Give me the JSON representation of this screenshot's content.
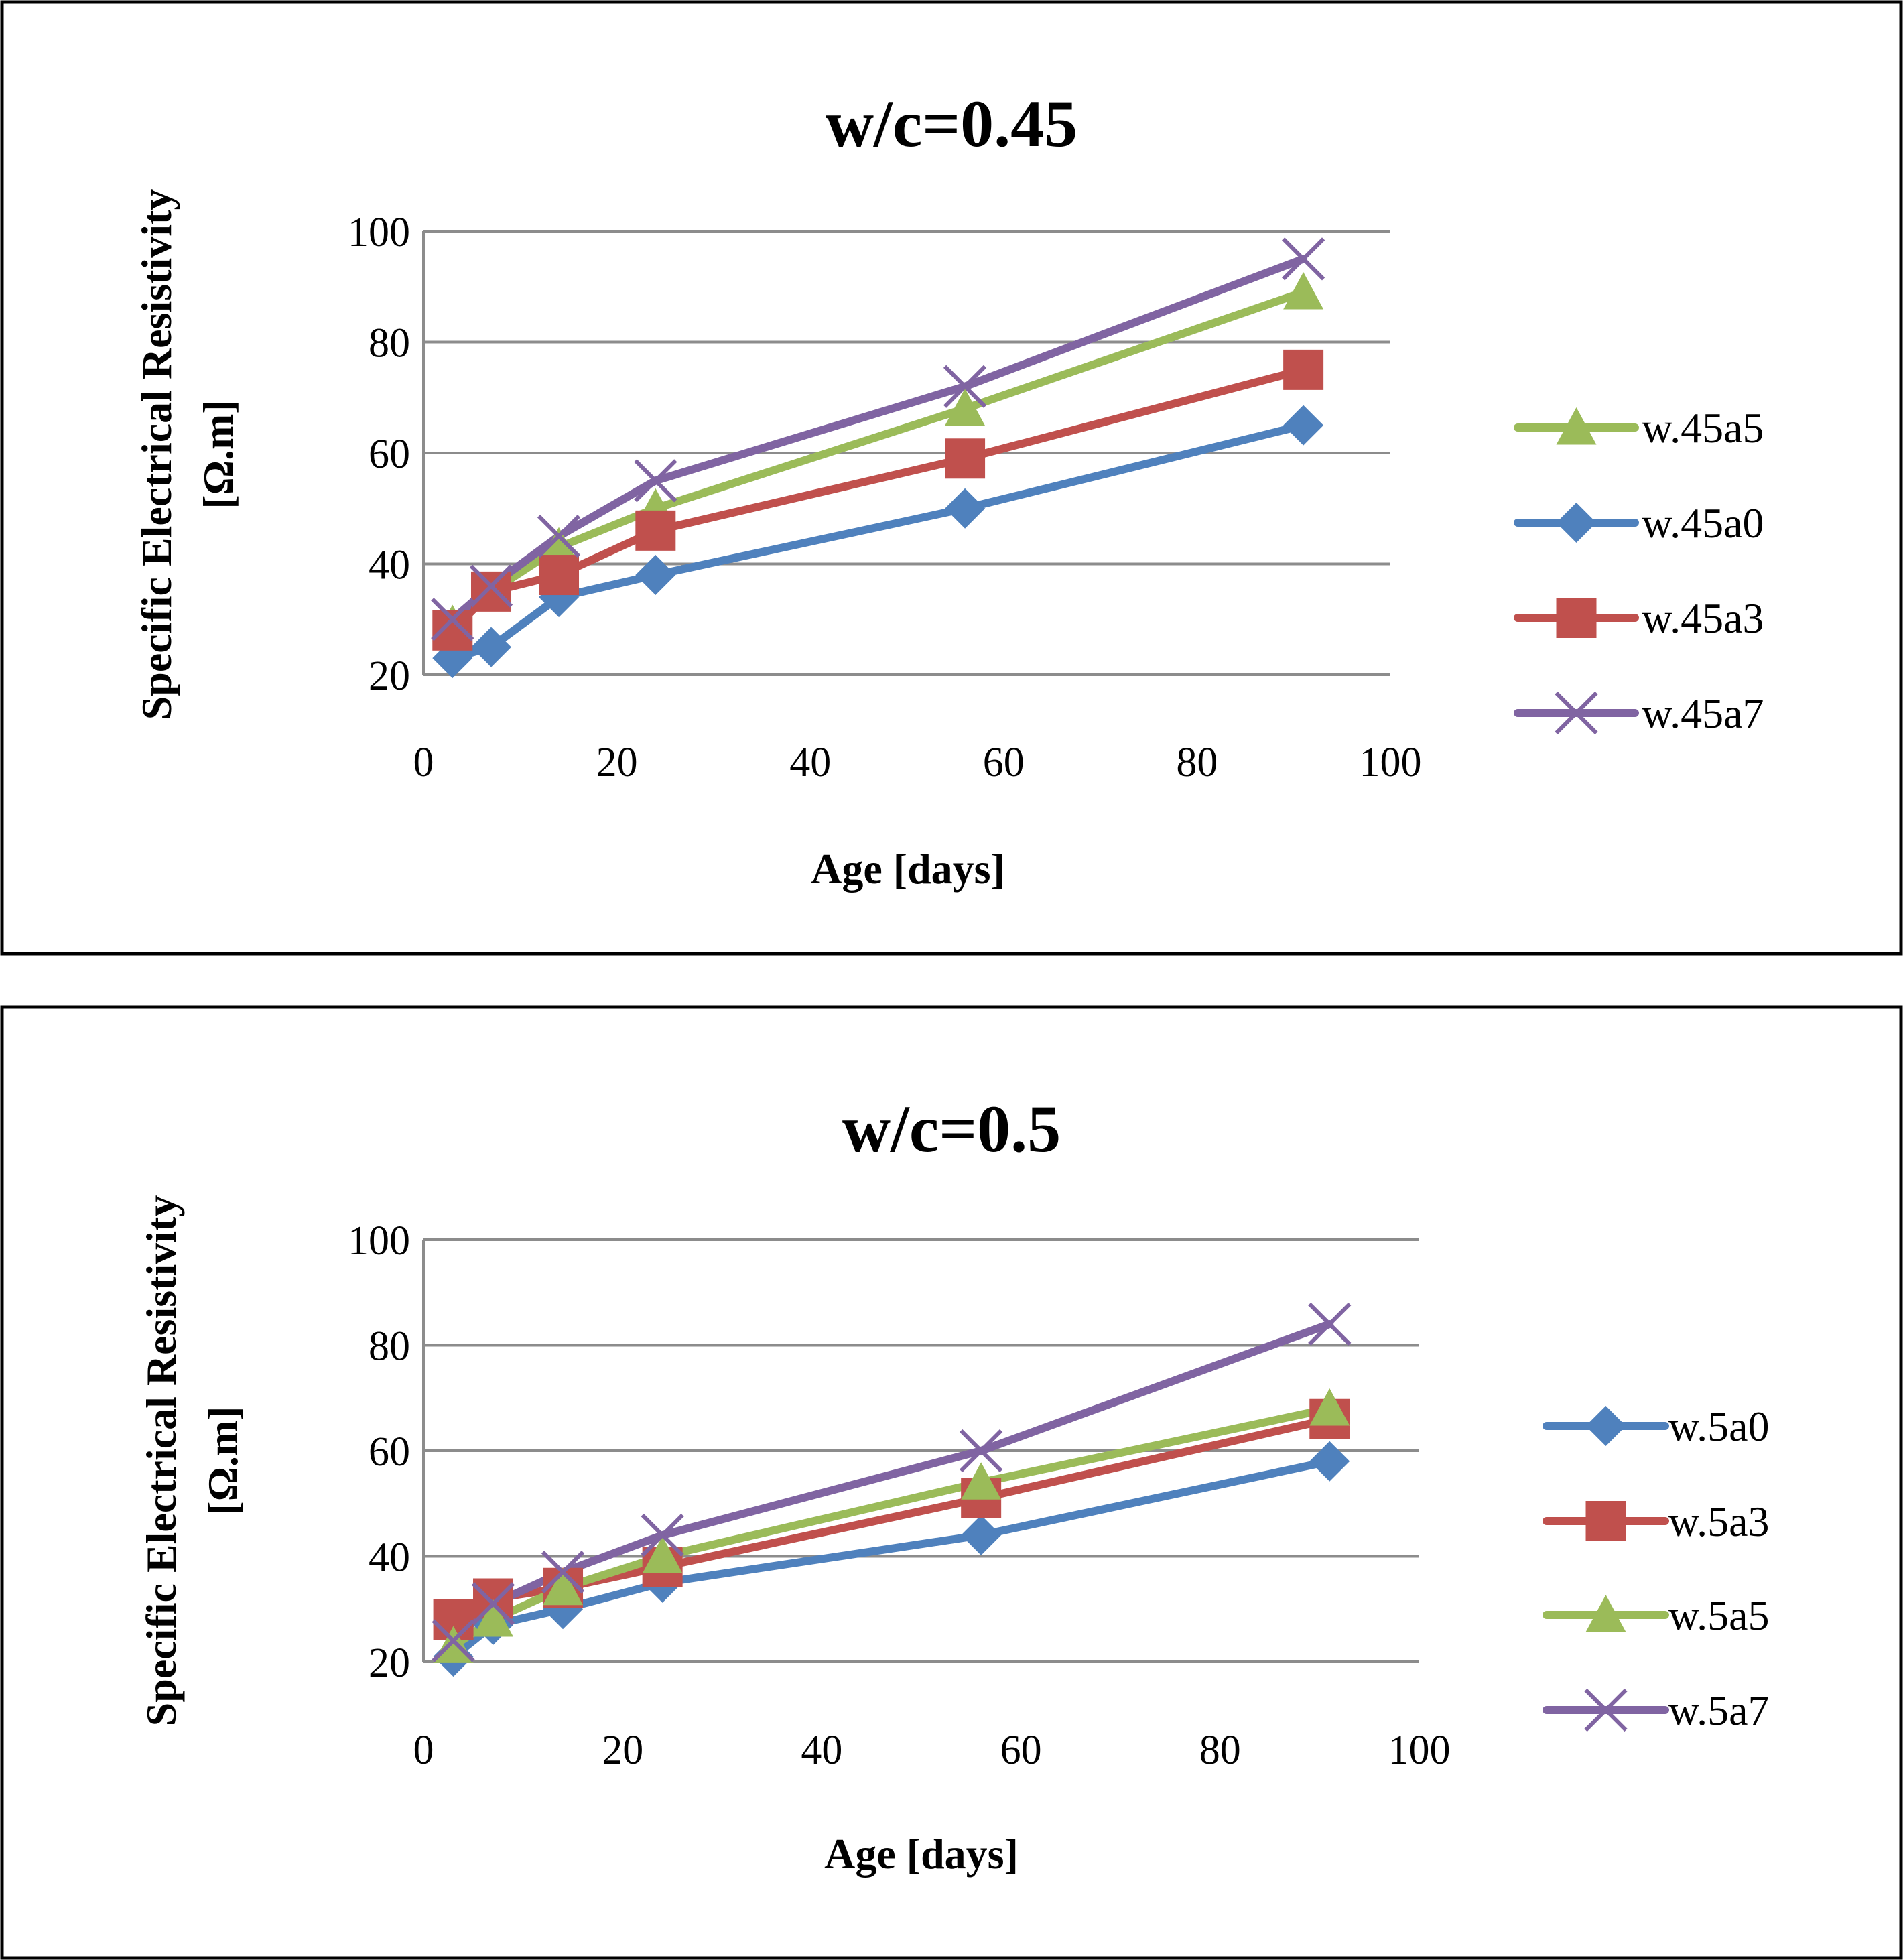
{
  "chart_data": [
    {
      "type": "line",
      "title": "w/c=0.45",
      "xlabel": "Age [days]",
      "ylabel": [
        "Specific Electrical Resistivity",
        "[Ω.m]"
      ],
      "xlim": [
        0,
        100
      ],
      "ylim": [
        20,
        100
      ],
      "xticks": [
        0,
        20,
        40,
        60,
        80,
        100
      ],
      "yticks": [
        20,
        40,
        60,
        80,
        100
      ],
      "grid": "horizontal",
      "legend_position": "right",
      "series": [
        {
          "name": "w.45a5",
          "color": "#9BBB59",
          "marker": "triangle",
          "x": [
            3,
            7,
            14,
            24,
            56,
            91
          ],
          "values": [
            29,
            35,
            43,
            50,
            68,
            89
          ]
        },
        {
          "name": "w.45a0",
          "color": "#4F81BD",
          "marker": "diamond",
          "x": [
            3,
            7,
            14,
            24,
            56,
            91
          ],
          "values": [
            23,
            25,
            34,
            38,
            50,
            65
          ]
        },
        {
          "name": "w.45a3",
          "color": "#C0504D",
          "marker": "square",
          "x": [
            3,
            7,
            14,
            24,
            56,
            91
          ],
          "values": [
            28,
            35,
            38,
            46,
            59,
            75
          ]
        },
        {
          "name": "w.45a7",
          "color": "#8064A2",
          "marker": "x",
          "x": [
            3,
            7,
            14,
            24,
            56,
            91
          ],
          "values": [
            30,
            36,
            45,
            55,
            72,
            95
          ]
        }
      ]
    },
    {
      "type": "line",
      "title": "w/c=0.5",
      "xlabel": "Age [days]",
      "ylabel": [
        "Specific Electrical Resistivity",
        "[Ω.m]"
      ],
      "xlim": [
        0,
        100
      ],
      "ylim": [
        20,
        100
      ],
      "xticks": [
        0,
        20,
        40,
        60,
        80,
        100
      ],
      "yticks": [
        20,
        40,
        60,
        80,
        100
      ],
      "grid": "horizontal",
      "legend_position": "right",
      "series": [
        {
          "name": "w.5a0",
          "color": "#4F81BD",
          "marker": "diamond",
          "x": [
            3,
            7,
            14,
            24,
            56,
            91
          ],
          "values": [
            21,
            27,
            30,
            35,
            44,
            58
          ]
        },
        {
          "name": "w.5a3",
          "color": "#C0504D",
          "marker": "square",
          "x": [
            3,
            7,
            14,
            24,
            56,
            91
          ],
          "values": [
            28,
            32,
            34,
            38,
            51,
            66
          ]
        },
        {
          "name": "w.5a5",
          "color": "#9BBB59",
          "marker": "triangle",
          "x": [
            3,
            7,
            14,
            24,
            56,
            91
          ],
          "values": [
            23,
            28,
            34,
            40,
            54,
            68
          ]
        },
        {
          "name": "w.5a7",
          "color": "#8064A2",
          "marker": "x",
          "x": [
            3,
            7,
            14,
            24,
            56,
            91
          ],
          "values": [
            24,
            31,
            37,
            44,
            60,
            84
          ]
        }
      ]
    }
  ]
}
